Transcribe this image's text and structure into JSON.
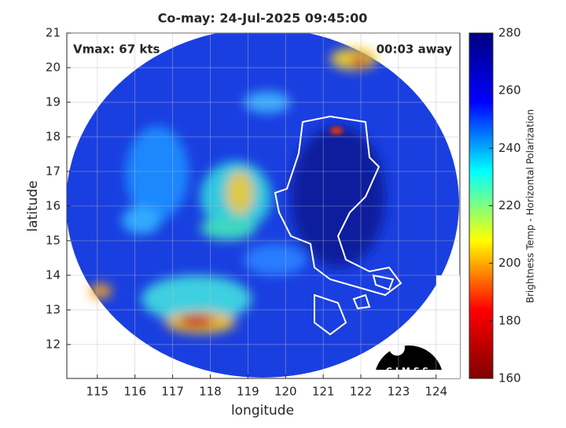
{
  "chart_data": {
    "type": "map",
    "title": "Co-may: 24-Jul-2025 09:45:00",
    "x_label": "longitude",
    "y_label": "latitude",
    "xlim": [
      114.19,
      124.63
    ],
    "ylim": [
      11.02,
      21
    ],
    "xticks": [
      115,
      116,
      117,
      118,
      119,
      120,
      121,
      122,
      123,
      124
    ],
    "yticks": [
      12,
      13,
      14,
      15,
      16,
      17,
      18,
      19,
      20,
      21
    ],
    "grid": true,
    "annotations": [
      "Vmax: 67 kts",
      "00:03 away"
    ],
    "logo": "CIMSS",
    "colorbar": {
      "label": "Brightness Temp - Horizontal Polarization",
      "lim": [
        160,
        280
      ],
      "ticks": [
        160,
        180,
        200,
        220,
        240,
        260,
        280
      ],
      "colors": [
        "#800000",
        "#ff0000",
        "#ffff00",
        "#00ffff",
        "#0000ff",
        "#000080"
      ]
    }
  }
}
